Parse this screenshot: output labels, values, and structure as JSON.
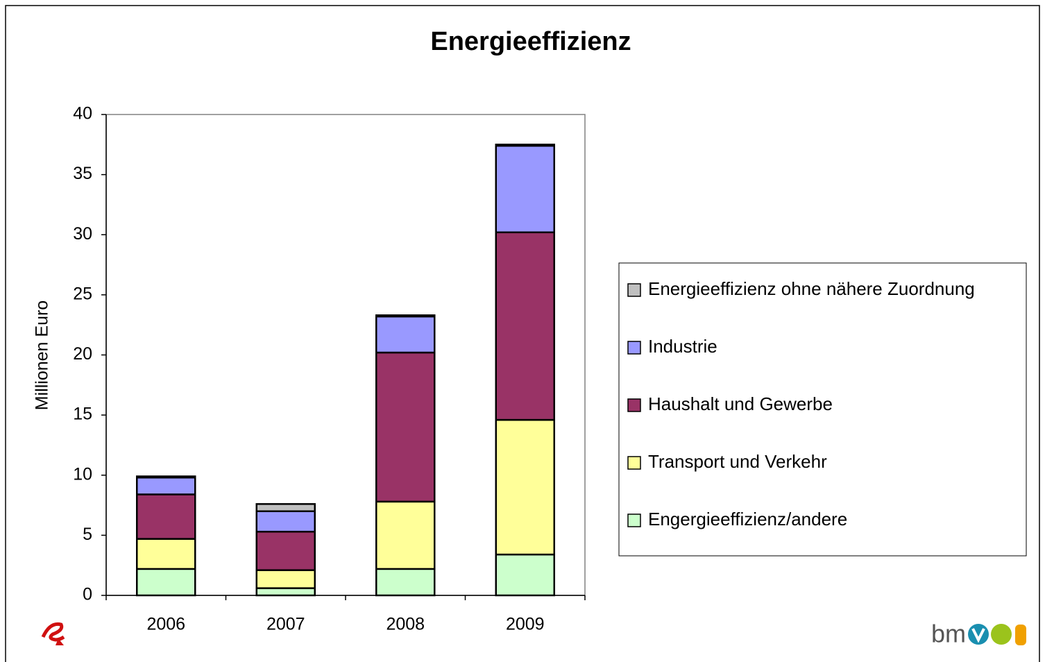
{
  "chart_data": {
    "type": "stacked_bar",
    "title": "Energieeffizienz",
    "y_label": "Millionen Euro",
    "categories": [
      "2006",
      "2007",
      "2008",
      "2009"
    ],
    "series": [
      {
        "name": "Engergieeffizienz/andere",
        "color": "#ccffcc",
        "values": [
          2.2,
          0.6,
          2.2,
          3.4
        ]
      },
      {
        "name": "Transport und Verkehr",
        "color": "#ffff99",
        "values": [
          2.5,
          1.5,
          5.6,
          11.2
        ]
      },
      {
        "name": "Haushalt und Gewerbe",
        "color": "#993366",
        "values": [
          3.7,
          3.2,
          12.4,
          15.6
        ]
      },
      {
        "name": "Industrie",
        "color": "#9999ff",
        "values": [
          1.4,
          1.7,
          3.0,
          7.2
        ]
      },
      {
        "name": "Energieeffizienz ohne nähere Zuordnung",
        "color": "#c0c0c0",
        "values": [
          0.1,
          0.6,
          0.1,
          0.1
        ]
      }
    ],
    "ylim": [
      0,
      40
    ],
    "yticks": [
      0,
      5,
      10,
      15,
      20,
      25,
      30,
      35,
      40
    ],
    "legend": "right",
    "logo_text": "bm"
  }
}
